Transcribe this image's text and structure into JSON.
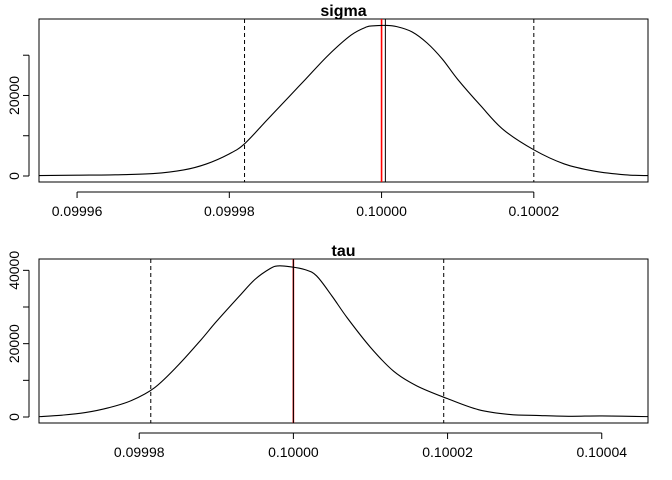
{
  "chart_data": [
    {
      "type": "line",
      "title": "sigma",
      "xlabel": "",
      "ylabel": "",
      "xlim": [
        0.099955,
        0.100035
      ],
      "ylim": [
        0,
        38000
      ],
      "xticks": [
        0.09996,
        0.09998,
        0.1,
        0.10002
      ],
      "xtick_labels": [
        "0.09996",
        "0.09998",
        "0.10000",
        "0.10002"
      ],
      "yticks": [
        0,
        10000,
        20000,
        30000
      ],
      "ytick_labels": [
        "0",
        "",
        "20000",
        ""
      ],
      "dashed_lines": [
        0.099982,
        0.10002
      ],
      "red_line": 0.1,
      "black_line": 0.1000005,
      "series": [
        {
          "x": [
            0.099955,
            0.09996,
            0.099965,
            0.09997,
            0.099974,
            0.099977,
            0.09998,
            0.099982,
            0.099985,
            0.099988,
            0.09999,
            0.099993,
            0.099996,
            0.099998,
            0.099999,
            0.1000005,
            0.100002,
            0.100004,
            0.100006,
            0.100008,
            0.10001,
            0.100013,
            0.100016,
            0.10002,
            0.100024,
            0.100028,
            0.100032,
            0.100035
          ],
          "y": [
            100,
            200,
            300,
            600,
            1500,
            3000,
            5500,
            8000,
            14000,
            20000,
            24000,
            30000,
            35000,
            37000,
            37300,
            37400,
            37100,
            35800,
            33000,
            29000,
            24000,
            17500,
            11500,
            6500,
            3000,
            1200,
            300,
            100
          ]
        }
      ]
    },
    {
      "type": "line",
      "title": "tau",
      "xlabel": "",
      "ylabel": "",
      "xlim": [
        0.099967,
        0.100046
      ],
      "ylim": [
        0,
        42000
      ],
      "xticks": [
        0.09998,
        0.1,
        0.10002,
        0.10004
      ],
      "xtick_labels": [
        "0.09998",
        "0.10000",
        "0.10002",
        "0.10004"
      ],
      "yticks": [
        0,
        10000,
        20000,
        30000,
        40000
      ],
      "ytick_labels": [
        "0",
        "",
        "20000",
        "",
        "40000"
      ],
      "dashed_lines": [
        0.0999815,
        0.1000195
      ],
      "red_line": 0.1,
      "black_line": 0.1,
      "series": [
        {
          "x": [
            0.099967,
            0.09997,
            0.099973,
            0.099976,
            0.099979,
            0.099982,
            0.099985,
            0.099988,
            0.09999,
            0.099993,
            0.099995,
            0.099997,
            0.099998,
            0.0999995,
            0.1000015,
            0.100003,
            0.100005,
            0.100007,
            0.10001,
            0.100013,
            0.100016,
            0.10002,
            0.100024,
            0.100028,
            0.100032,
            0.100036,
            0.10004,
            0.100046
          ],
          "y": [
            100,
            500,
            1200,
            2500,
            4500,
            8000,
            14000,
            21000,
            26000,
            33000,
            37500,
            40500,
            41200,
            41000,
            40200,
            38500,
            33000,
            27000,
            19000,
            12500,
            8500,
            5000,
            2000,
            700,
            400,
            200,
            300,
            100
          ]
        }
      ]
    }
  ]
}
